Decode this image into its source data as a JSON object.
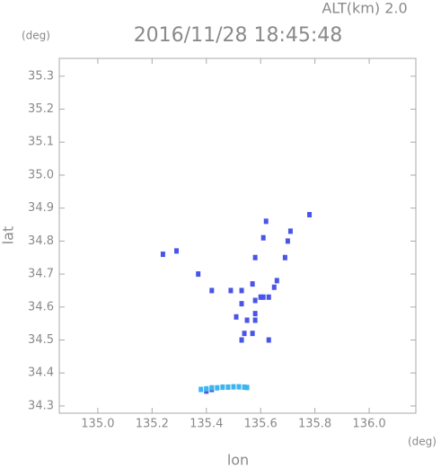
{
  "chart_data": {
    "type": "scatter",
    "title": "2016/11/28 18:45:48",
    "subtitle": "ALT(km) 2.0",
    "x_label": "lon",
    "y_label": "lat",
    "x_unit": "(deg)",
    "y_unit": "(deg)",
    "xlim": [
      134.858,
      136.172
    ],
    "ylim": [
      34.278,
      35.354
    ],
    "xticks": [
      {
        "value": 135,
        "label": "135.0"
      },
      135.2,
      135.4,
      135.6,
      135.8,
      {
        "value": 136,
        "label": "136.0"
      }
    ],
    "yticks": [
      34.3,
      34.4,
      34.5,
      34.6,
      34.7,
      34.8,
      34.9,
      {
        "value": 35,
        "label": "35.0"
      },
      35.1,
      35.2,
      35.3
    ],
    "grid": false,
    "series": [
      {
        "color": "#4a55e8",
        "x": [
          135.24,
          135.29,
          135.37,
          135.42,
          135.49,
          135.53,
          135.53,
          135.58,
          135.6,
          135.61,
          135.65,
          135.66,
          135.63,
          135.51,
          135.55,
          135.58,
          135.54,
          135.53,
          135.57,
          135.63,
          135.62,
          135.61,
          135.58,
          135.71,
          135.69,
          135.7,
          135.78,
          135.57,
          135.58,
          135.4,
          135.42
        ],
        "y": [
          34.76,
          34.77,
          34.7,
          34.65,
          34.65,
          34.65,
          34.61,
          34.62,
          34.63,
          34.63,
          34.66,
          34.68,
          34.63,
          34.57,
          34.56,
          34.56,
          34.52,
          34.5,
          34.52,
          34.5,
          34.86,
          34.81,
          34.75,
          34.83,
          34.75,
          34.8,
          34.88,
          34.67,
          34.58,
          34.345,
          34.35
        ]
      },
      {
        "color": "#3cb6ee",
        "x": [
          135.38,
          135.4,
          135.42,
          135.44,
          135.46,
          135.48,
          135.5,
          135.52,
          135.54,
          135.55
        ],
        "y": [
          34.35,
          34.352,
          34.355,
          34.355,
          34.357,
          34.357,
          34.358,
          34.358,
          34.357,
          34.356
        ]
      }
    ]
  }
}
